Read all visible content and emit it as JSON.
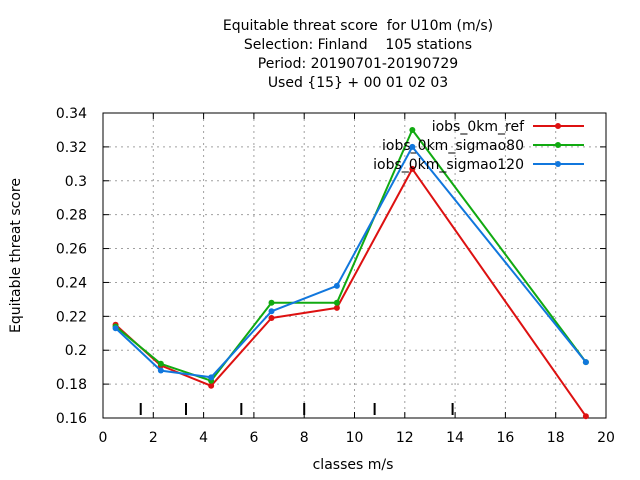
{
  "title_lines": [
    "Equitable threat score  for U10m (m/s)",
    "Selection: Finland    105 stations",
    "Period: 20190701-20190729",
    "Used {15} + 00 01 02 03"
  ],
  "colors": {
    "axis": "#000000",
    "grid": "#a0a0a0"
  },
  "chart_data": {
    "type": "line",
    "title": "Equitable threat score  for U10m (m/s)",
    "xlabel": "classes m/s",
    "ylabel": "Equitable threat score",
    "xlim": [
      0,
      20
    ],
    "ylim": [
      0.16,
      0.34
    ],
    "xticks": [
      0,
      2,
      4,
      6,
      8,
      10,
      12,
      14,
      16,
      18,
      20
    ],
    "yticks": [
      0.16,
      0.18,
      0.2,
      0.22,
      0.24,
      0.26,
      0.28,
      0.3,
      0.32,
      0.34
    ],
    "grid": true,
    "legend_position": "top-right",
    "class_limits": [
      1.5,
      3.3,
      5.5,
      8,
      10.8,
      13.9
    ],
    "series": [
      {
        "name": "iobs_0km_ref",
        "color": "#dd1111",
        "x": [
          0.5,
          2.3,
          4.3,
          6.7,
          9.3,
          12.3,
          19.2
        ],
        "values": [
          0.215,
          0.191,
          0.179,
          0.219,
          0.225,
          0.307,
          0.161
        ]
      },
      {
        "name": "iobs_0km_sigmao80",
        "color": "#11aa11",
        "x": [
          0.5,
          2.3,
          4.3,
          6.7,
          9.3,
          12.3,
          19.2
        ],
        "values": [
          0.214,
          0.192,
          0.182,
          0.228,
          0.228,
          0.33,
          0.193
        ]
      },
      {
        "name": "iobs_0km_sigmao120",
        "color": "#1177dd",
        "x": [
          0.5,
          2.3,
          4.3,
          6.7,
          9.3,
          12.3,
          19.2
        ],
        "values": [
          0.213,
          0.188,
          0.184,
          0.223,
          0.238,
          0.32,
          0.193
        ]
      }
    ]
  }
}
